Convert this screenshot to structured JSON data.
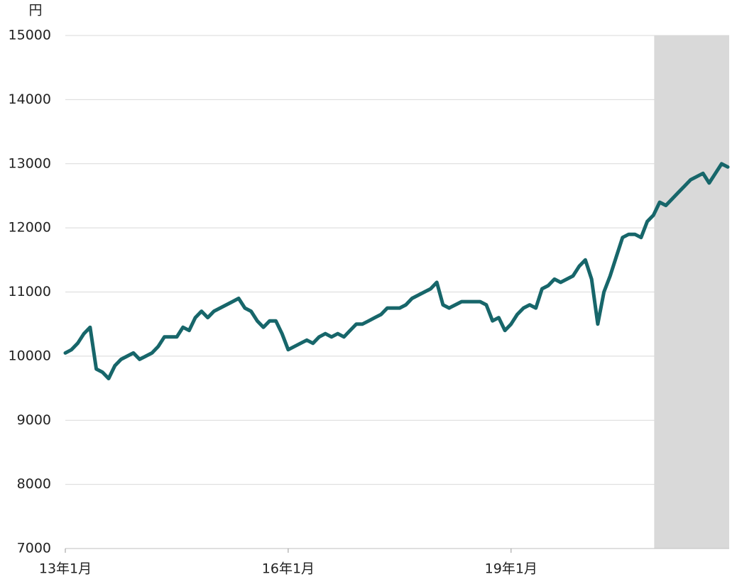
{
  "chart_data": {
    "type": "line",
    "y_unit": "円",
    "categories": [
      "13年1月",
      null,
      null,
      null,
      null,
      null,
      null,
      null,
      null,
      null,
      null,
      null,
      null,
      null,
      null,
      null,
      null,
      null,
      null,
      null,
      null,
      null,
      null,
      null,
      null,
      null,
      null,
      null,
      null,
      null,
      null,
      null,
      null,
      null,
      null,
      null,
      "16年1月",
      null,
      null,
      null,
      null,
      null,
      null,
      null,
      null,
      null,
      null,
      null,
      null,
      null,
      null,
      null,
      null,
      null,
      null,
      null,
      null,
      null,
      null,
      null,
      null,
      null,
      null,
      null,
      null,
      null,
      null,
      null,
      null,
      null,
      null,
      null,
      "19年1月",
      null,
      null,
      null,
      null,
      null,
      null,
      null,
      null,
      null,
      null,
      null,
      null,
      null,
      null,
      null,
      null,
      null,
      null,
      null,
      null,
      null,
      null,
      null,
      null,
      null,
      null,
      null,
      null,
      null,
      null,
      null,
      null,
      null,
      null,
      null
    ],
    "series": [
      {
        "color": "#17666a",
        "values": [
          10050,
          10100,
          10200,
          10350,
          10450,
          9800,
          9750,
          9650,
          9850,
          9950,
          10000,
          10050,
          9950,
          10000,
          10050,
          10150,
          10300,
          10300,
          10300,
          10450,
          10400,
          10600,
          10700,
          10600,
          10700,
          10750,
          10800,
          10850,
          10900,
          10750,
          10700,
          10550,
          10450,
          10550,
          10550,
          10350,
          10100,
          10150,
          10200,
          10250,
          10200,
          10300,
          10350,
          10300,
          10350,
          10300,
          10400,
          10500,
          10500,
          10550,
          10600,
          10650,
          10750,
          10750,
          10750,
          10800,
          10900,
          10950,
          11000,
          11050,
          11150,
          10800,
          10750,
          10800,
          10850,
          10850,
          10850,
          10850,
          10800,
          10550,
          10600,
          10400,
          10500,
          10650,
          10750,
          10800,
          10750,
          11050,
          11100,
          11200,
          11150,
          11200,
          11250,
          11400,
          11500,
          11200,
          10500,
          11000,
          11250,
          11550,
          11850,
          11900,
          11900,
          11850,
          12100,
          12200,
          12400,
          12350,
          12450,
          12550,
          12650,
          12750,
          12800,
          12850,
          12700,
          12850,
          13000,
          12950
        ]
      }
    ],
    "ylim": [
      7000,
      15000
    ],
    "yticks": [
      7000,
      8000,
      9000,
      10000,
      11000,
      12000,
      13000,
      14000,
      15000
    ],
    "grid": true,
    "highlight": {
      "from_category": 95,
      "color": "#d9d9d9"
    }
  }
}
